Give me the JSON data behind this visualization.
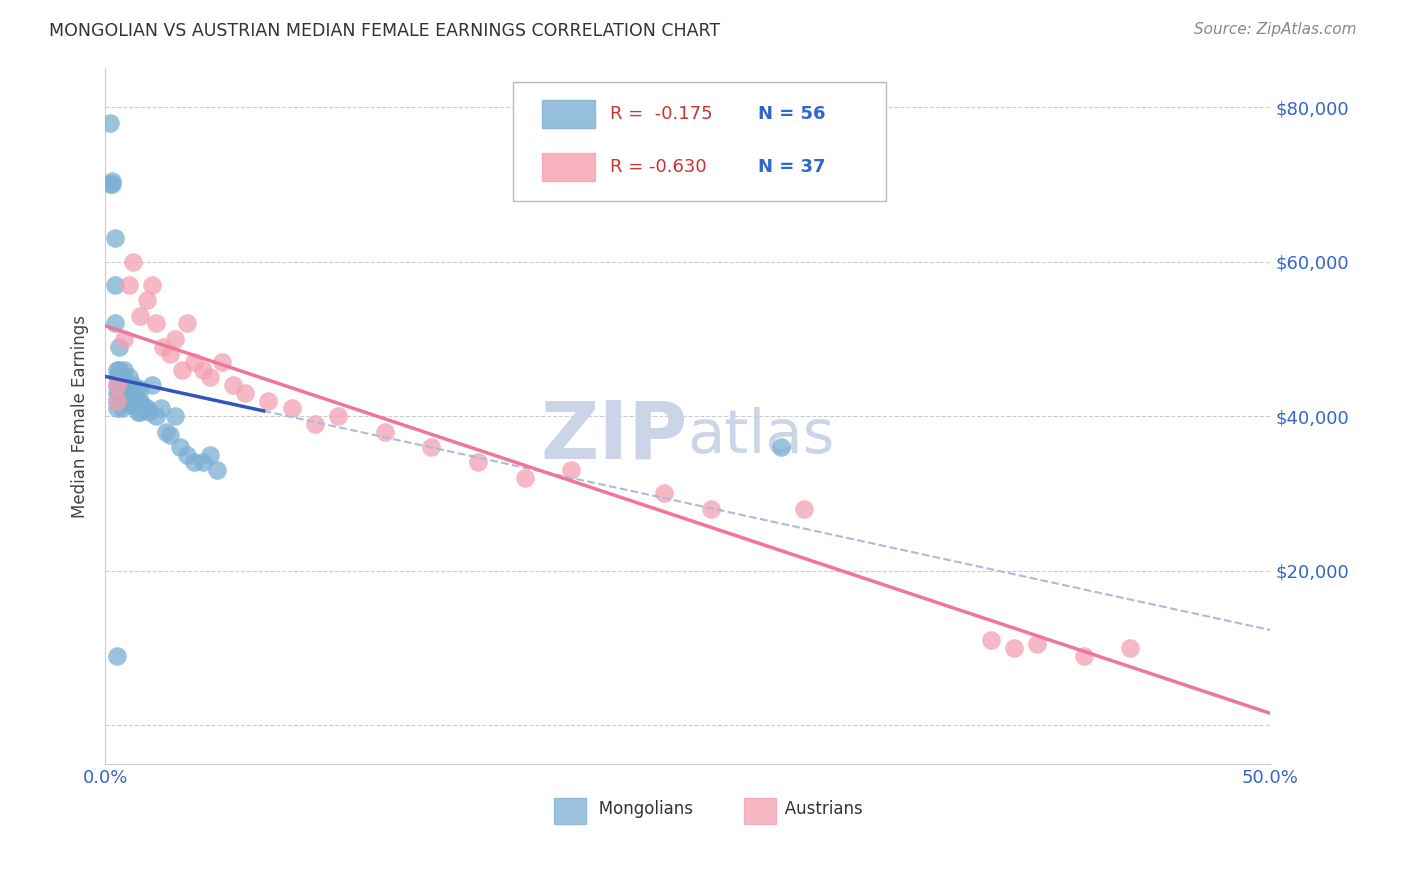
{
  "title": "MONGOLIAN VS AUSTRIAN MEDIAN FEMALE EARNINGS CORRELATION CHART",
  "source": "Source: ZipAtlas.com",
  "ylabel": "Median Female Earnings",
  "yticks": [
    0,
    20000,
    40000,
    60000,
    80000
  ],
  "xlim": [
    0.0,
    0.5
  ],
  "ylim": [
    -5000,
    85000
  ],
  "legend_blue_r": "R =  -0.175",
  "legend_blue_n": "N = 56",
  "legend_pink_r": "R = -0.630",
  "legend_pink_n": "N = 37",
  "mongolian_color": "#7bafd4",
  "austrian_color": "#f4a0b0",
  "blue_line_color": "#3355bb",
  "blue_dash_color": "#aabbdd",
  "pink_line_color": "#ee7799",
  "watermark_zip": "ZIP",
  "watermark_atlas": "atlas",
  "watermark_color": "#ccd5e8",
  "background_color": "#ffffff",
  "legend_r_color": "#cc3333",
  "legend_n_color": "#3366cc",
  "axis_label_color": "#3366cc",
  "title_color": "#333333",
  "source_color": "#888888"
}
